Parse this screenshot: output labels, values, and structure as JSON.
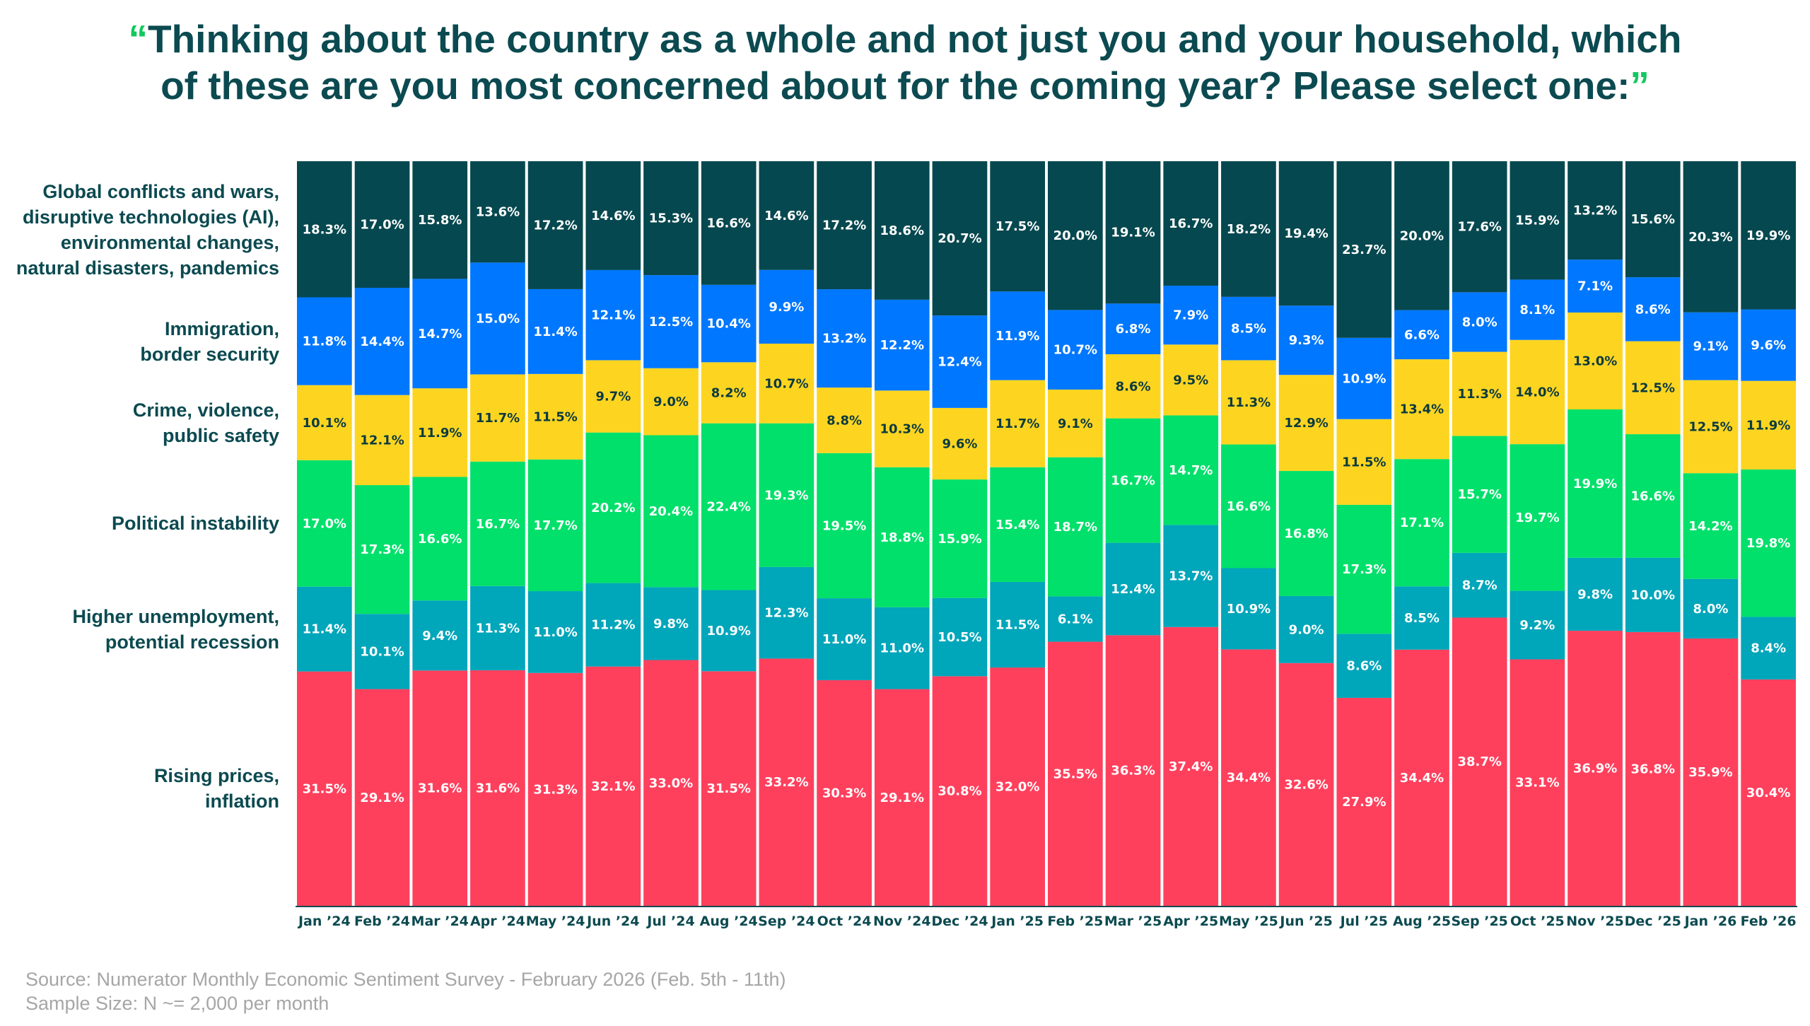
{
  "title": {
    "open_quote": "“",
    "text_line1": "Thinking about the country as a whole and not just you and your household, which",
    "text_line2": "of these are you most concerned about for the coming year? Please select one:",
    "close_quote": "”"
  },
  "source": {
    "line1": "Source: Numerator Monthly Economic Sentiment Survey - February 2026  (Feb. 5th - 11th)",
    "line2": "Sample Size: N ~= 2,000 per month"
  },
  "chart_data": {
    "type": "bar",
    "stacked": true,
    "normalized": true,
    "categories": [
      "Jan ’24",
      "Feb ’24",
      "Mar ’24",
      "Apr ’24",
      "May ’24",
      "Jun ’24",
      "Jul ’24",
      "Aug ’24",
      "Sep ’24",
      "Oct ’24",
      "Nov ’24",
      "Dec ’24",
      "Jan ’25",
      "Feb ’25",
      "Mar ’25",
      "Apr ’25",
      "May ’25",
      "Jun ’25",
      "Jul ’25",
      "Aug ’25",
      "Sep ’25",
      "Oct ’25",
      "Nov ’25",
      "Dec ’25",
      "Jan ’26",
      "Feb ’26"
    ],
    "ylim": [
      0,
      100
    ],
    "legend": "left",
    "series": [
      {
        "name": "Rising prices, inflation",
        "label_lines": [
          "Rising prices,",
          "inflation"
        ],
        "color": "#ff405d",
        "text_color": "#ffffff",
        "values": [
          31.5,
          29.1,
          31.6,
          31.6,
          31.3,
          32.1,
          33.0,
          31.5,
          33.2,
          30.3,
          29.1,
          30.8,
          32.0,
          35.5,
          36.3,
          37.4,
          34.4,
          32.6,
          27.9,
          34.4,
          38.7,
          33.1,
          36.9,
          36.8,
          35.9,
          30.4
        ]
      },
      {
        "name": "Higher unemployment, potential recession",
        "label_lines": [
          "Higher unemployment,",
          "potential recession"
        ],
        "color": "#00a6ba",
        "text_color": "#ffffff",
        "values": [
          11.4,
          10.1,
          9.4,
          11.3,
          11.0,
          11.2,
          9.8,
          10.9,
          12.3,
          11.0,
          11.0,
          10.5,
          11.5,
          6.1,
          12.4,
          13.7,
          10.9,
          9.0,
          8.6,
          8.5,
          8.7,
          9.2,
          9.8,
          10.0,
          8.0,
          8.4
        ]
      },
      {
        "name": "Political instability",
        "label_lines": [
          "Political instability"
        ],
        "color": "#00e06a",
        "text_color": "#ffffff",
        "values": [
          17.0,
          17.3,
          16.6,
          16.7,
          17.7,
          20.2,
          20.4,
          22.4,
          19.3,
          19.5,
          18.8,
          15.9,
          15.4,
          18.7,
          16.7,
          14.7,
          16.6,
          16.8,
          17.3,
          17.1,
          15.7,
          19.7,
          19.9,
          16.6,
          14.2,
          19.8
        ]
      },
      {
        "name": "Crime, violence, public safety",
        "label_lines": [
          "Crime, violence,",
          "public safety"
        ],
        "color": "#fdd520",
        "text_color": "#0b3a40",
        "values": [
          10.1,
          12.1,
          11.9,
          11.7,
          11.5,
          9.7,
          9.0,
          8.2,
          10.7,
          8.8,
          10.3,
          9.6,
          11.7,
          9.1,
          8.6,
          9.5,
          11.3,
          12.9,
          11.5,
          13.4,
          11.3,
          14.0,
          13.0,
          12.5,
          12.5,
          11.9
        ]
      },
      {
        "name": "Immigration, border security",
        "label_lines": [
          "Immigration,",
          "border security"
        ],
        "color": "#0077ff",
        "text_color": "#ffffff",
        "values": [
          11.8,
          14.4,
          14.7,
          15.0,
          11.4,
          12.1,
          12.5,
          10.4,
          9.9,
          13.2,
          12.2,
          12.4,
          11.9,
          10.7,
          6.8,
          7.9,
          8.5,
          9.3,
          10.9,
          6.6,
          8.0,
          8.1,
          7.1,
          8.6,
          9.1,
          9.6
        ]
      },
      {
        "name": "Global conflicts and wars, disruptive technologies (AI), environmental changes, natural disasters, pandemics",
        "label_lines": [
          "Global conflicts and wars,",
          "disruptive technologies (AI),",
          "environmental changes,",
          "natural disasters, pandemics"
        ],
        "color": "#06484f",
        "text_color": "#ffffff",
        "values": [
          18.3,
          17.0,
          15.8,
          13.6,
          17.2,
          14.6,
          15.3,
          16.6,
          14.6,
          17.2,
          18.6,
          20.7,
          17.5,
          20.0,
          19.1,
          16.7,
          18.2,
          19.4,
          23.7,
          20.0,
          17.6,
          15.9,
          13.2,
          15.6,
          20.3,
          19.9
        ]
      }
    ]
  }
}
